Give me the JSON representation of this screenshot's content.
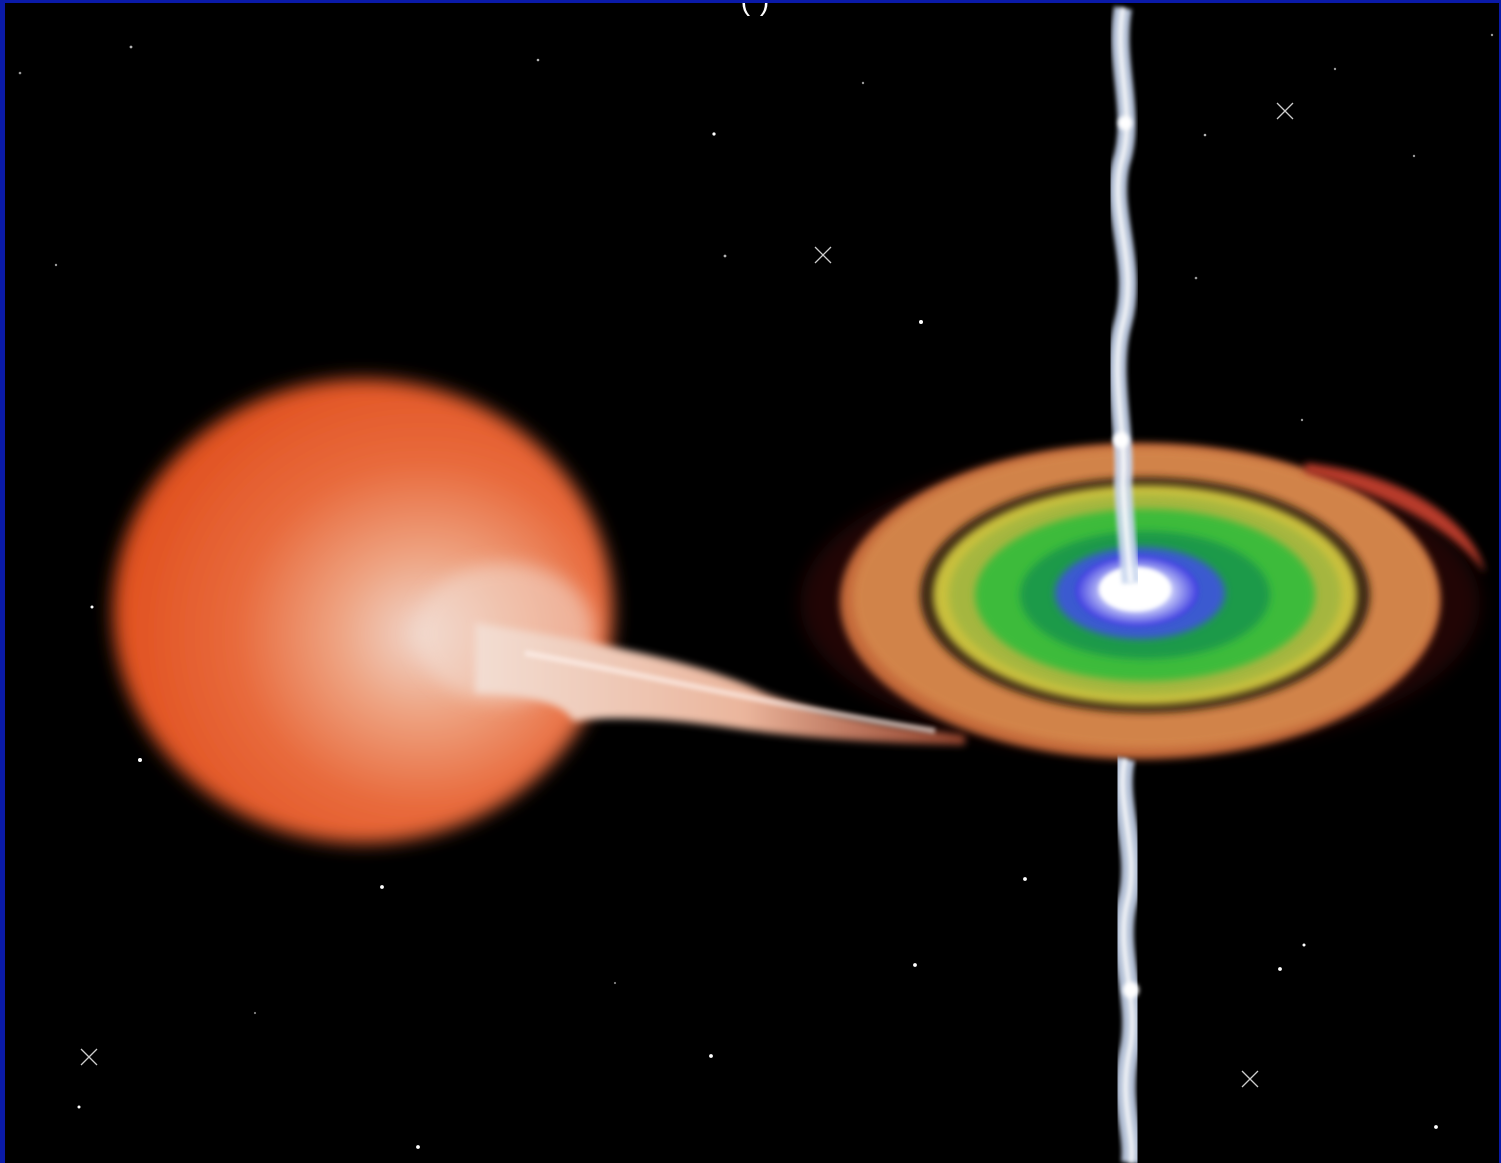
{
  "header": {
    "caption_fragment": "(                            )"
  },
  "scene": {
    "objects": [
      {
        "name": "donor-star",
        "color": "#e8602e"
      },
      {
        "name": "accretion-stream",
        "color": "#f3d8cc"
      },
      {
        "name": "accretion-disk",
        "colors": [
          "#ffffff",
          "#3a3adf",
          "#1fae3a",
          "#c7c23e",
          "#c98a44",
          "#b8402e"
        ]
      },
      {
        "name": "relativistic-jet",
        "color": "#c8d6ee"
      },
      {
        "name": "star-field",
        "color": "#ffffff"
      }
    ],
    "background_color": "#000000",
    "border_color": "#0a1aa8"
  }
}
